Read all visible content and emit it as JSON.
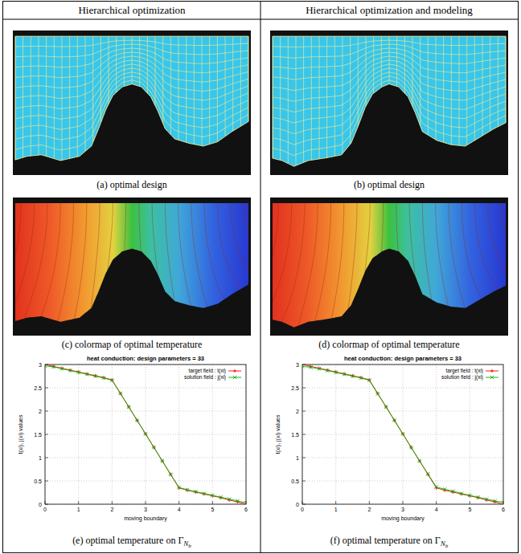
{
  "header": {
    "columns": [
      "Hierarchical optimization",
      "Hierarchical optimization and modeling"
    ]
  },
  "mesh_row": {
    "captions": [
      "(a) optimal design",
      "(b) optimal design"
    ]
  },
  "temperature_row": {
    "captions": [
      "(c) colormap of optimal temperature",
      "(d) colormap of optimal temperature"
    ]
  },
  "chart_row": {
    "captions": [
      {
        "text": "(e) optimal temperature on Γ",
        "sub": "N",
        "subsub": "b"
      },
      {
        "text": "(f) optimal temperature on Γ",
        "sub": "N",
        "subsub": "b"
      }
    ]
  },
  "chart_data": [
    {
      "type": "line",
      "title": "heat conduction: design parameters = 33",
      "x_label": "moving boundary",
      "y_label": "t(xi), j(xi) values",
      "x": [
        0,
        0.25,
        0.5,
        0.75,
        1,
        1.25,
        1.5,
        1.75,
        2,
        2.25,
        2.5,
        2.75,
        3,
        3.25,
        3.5,
        3.75,
        4,
        4.25,
        4.5,
        4.75,
        5,
        5.25,
        5.5,
        5.75,
        6
      ],
      "series": [
        {
          "name": "target field : t(xi)",
          "color": "#ff0000",
          "marker": "plus",
          "values": [
            3.0,
            2.96,
            2.92,
            2.88,
            2.84,
            2.8,
            2.76,
            2.72,
            2.67,
            2.38,
            2.09,
            1.8,
            1.51,
            1.22,
            0.93,
            0.64,
            0.35,
            0.3,
            0.26,
            0.22,
            0.18,
            0.14,
            0.09,
            0.05,
            0.0
          ]
        },
        {
          "name": "solution field : j(xi)",
          "color": "#00b000",
          "marker": "x",
          "values": [
            2.97,
            2.95,
            2.91,
            2.87,
            2.83,
            2.79,
            2.75,
            2.71,
            2.66,
            2.38,
            2.09,
            1.8,
            1.51,
            1.22,
            0.93,
            0.64,
            0.36,
            0.31,
            0.27,
            0.23,
            0.19,
            0.15,
            0.11,
            0.07,
            0.03
          ]
        }
      ],
      "xlim": [
        0,
        6
      ],
      "ylim": [
        0,
        3
      ],
      "xticks": [
        0,
        1,
        2,
        3,
        4,
        5,
        6
      ],
      "yticks": [
        0,
        0.5,
        1,
        1.5,
        2,
        2.5,
        3
      ],
      "grid": true,
      "legend": "top-right"
    },
    {
      "type": "line",
      "title": "heat conduction: design parameters = 33",
      "x_label": "moving boundary",
      "y_label": "t(xi), j(xi) values",
      "x": [
        0,
        0.25,
        0.5,
        0.75,
        1,
        1.25,
        1.5,
        1.75,
        2,
        2.25,
        2.5,
        2.75,
        3,
        3.25,
        3.5,
        3.75,
        4,
        4.25,
        4.5,
        4.75,
        5,
        5.25,
        5.5,
        5.75,
        6
      ],
      "series": [
        {
          "name": "target field : t(xi)",
          "color": "#ff0000",
          "marker": "plus",
          "values": [
            3.0,
            2.96,
            2.92,
            2.88,
            2.84,
            2.8,
            2.76,
            2.72,
            2.67,
            2.38,
            2.09,
            1.8,
            1.51,
            1.22,
            0.93,
            0.64,
            0.35,
            0.3,
            0.26,
            0.22,
            0.18,
            0.14,
            0.09,
            0.05,
            0.0
          ]
        },
        {
          "name": "solution field : j(xi)",
          "color": "#00b000",
          "marker": "x",
          "values": [
            2.96,
            2.94,
            2.91,
            2.87,
            2.83,
            2.79,
            2.75,
            2.71,
            2.66,
            2.37,
            2.09,
            1.8,
            1.51,
            1.22,
            0.93,
            0.65,
            0.37,
            0.32,
            0.28,
            0.23,
            0.19,
            0.15,
            0.11,
            0.07,
            0.04
          ]
        }
      ],
      "xlim": [
        0,
        6
      ],
      "ylim": [
        0,
        3
      ],
      "xticks": [
        0,
        1,
        2,
        3,
        4,
        5,
        6
      ],
      "yticks": [
        0,
        0.5,
        1,
        1.5,
        2,
        2.5,
        3
      ],
      "grid": true,
      "legend": "top-right"
    }
  ]
}
